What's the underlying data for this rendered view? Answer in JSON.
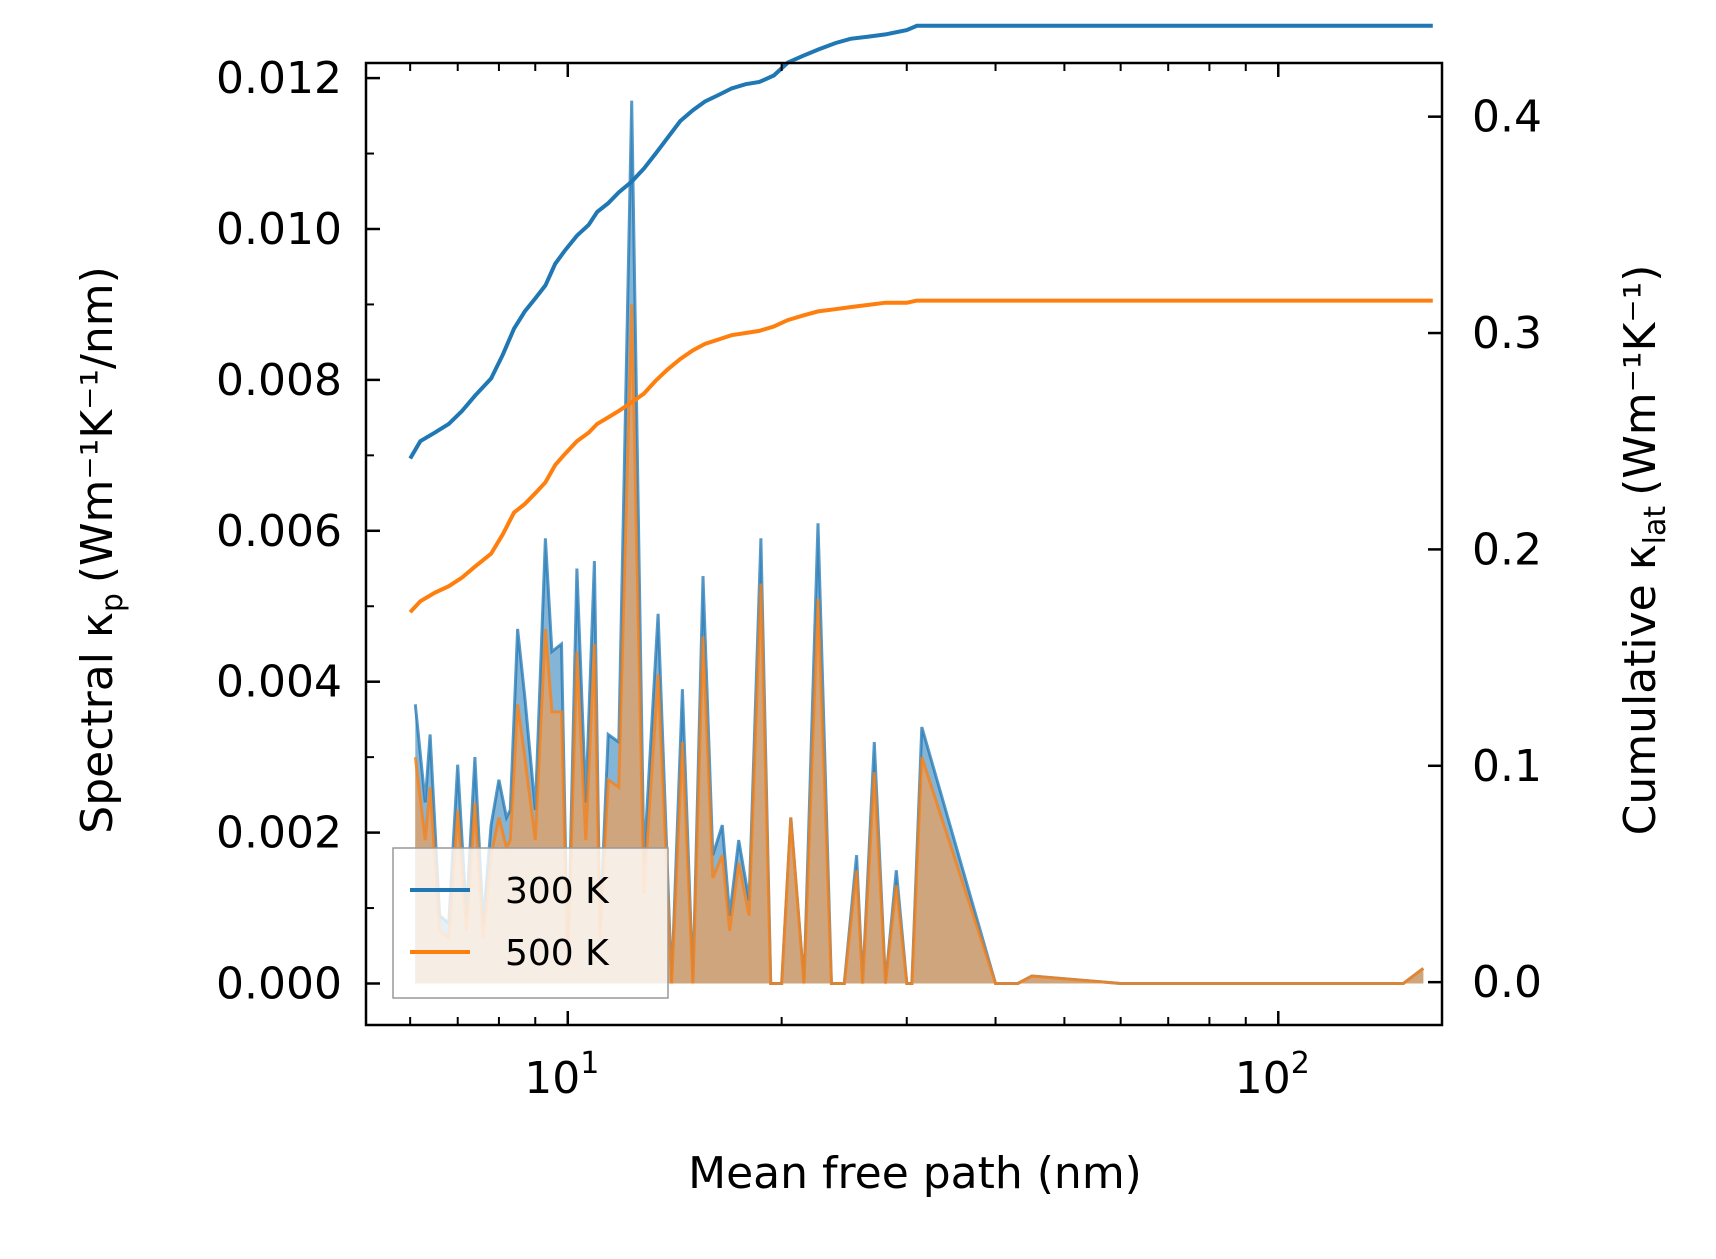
{
  "chart_data": {
    "type": "line",
    "xlabel": "Mean free path (nm)",
    "xscale": "log",
    "xlim": [
      5.2,
      170
    ],
    "ylabel_left": {
      "main": "Spectral κ",
      "sub": "p",
      "unit": "(Wm⁻¹K⁻¹/nm)"
    },
    "ylabel_right": {
      "main": "Cumulative κ",
      "sub": "lat",
      "unit": "(Wm⁻¹K⁻¹)"
    },
    "ylim_left": [
      -0.00055,
      0.0122
    ],
    "ylim_right": [
      -0.0198,
      0.4248
    ],
    "x_ticks": [
      {
        "value": 10,
        "label": "10",
        "exp": "1"
      },
      {
        "value": 100,
        "label": "10",
        "exp": "2"
      }
    ],
    "y_ticks_left": [
      "0.000",
      "0.002",
      "0.004",
      "0.006",
      "0.008",
      "0.010",
      "0.012"
    ],
    "y_ticks_left_values": [
      0,
      0.002,
      0.004,
      0.006,
      0.008,
      0.01,
      0.012
    ],
    "y_ticks_right": [
      "0.0",
      "0.1",
      "0.2",
      "0.3",
      "0.4"
    ],
    "y_ticks_right_values": [
      0,
      0.1,
      0.2,
      0.3,
      0.4
    ],
    "legend": {
      "placement": "lower-left",
      "entries": [
        "300 K",
        "500 K"
      ]
    },
    "colors": {
      "s300": "#1f77b4",
      "s500": "#ff7f0e",
      "fill300": "#1f77b4",
      "fill500": "#e8a060"
    },
    "spectral_x": [
      6.1,
      6.3,
      6.4,
      6.6,
      6.8,
      7.0,
      7.2,
      7.4,
      7.6,
      7.8,
      8.0,
      8.2,
      8.3,
      8.5,
      8.7,
      9.0,
      9.3,
      9.5,
      9.8,
      10.0,
      10.3,
      10.6,
      10.9,
      11.1,
      11.4,
      11.8,
      12.3,
      12.8,
      13.4,
      14.0,
      14.5,
      15.0,
      15.5,
      16.0,
      16.5,
      16.9,
      17.4,
      18.0,
      18.7,
      19.3,
      20.0,
      20.6,
      21.5,
      22.5,
      23.5,
      24.5,
      25.5,
      26.0,
      27.0,
      28.0,
      29.0,
      30.0,
      30.5,
      31.5,
      40.0,
      43.0,
      45.0,
      60.0,
      100.0,
      150.0,
      160.0
    ],
    "spectral_300": [
      0.0037,
      0.0024,
      0.0033,
      0.0009,
      0.0008,
      0.0029,
      0.0009,
      0.003,
      0.0008,
      0.0021,
      0.0027,
      0.0022,
      0.0023,
      0.0047,
      0.0038,
      0.0023,
      0.0059,
      0.0044,
      0.0045,
      0.0002,
      0.0055,
      0.0024,
      0.0056,
      0.0007,
      0.0033,
      0.0032,
      0.0117,
      0.0016,
      0.0049,
      0.0,
      0.0039,
      0.0,
      0.0054,
      0.0017,
      0.0021,
      0.0009,
      0.0019,
      0.0011,
      0.0059,
      0.0,
      0.0,
      0.0022,
      0.0,
      0.0061,
      0.0,
      0.0,
      0.0017,
      0.0,
      0.0032,
      0.0,
      0.0015,
      0.0,
      0.0,
      0.0034,
      0.0,
      0.0,
      0.0001,
      0.0,
      0.0,
      0.0,
      0.0002
    ],
    "spectral_500": [
      0.003,
      0.0019,
      0.0026,
      0.0007,
      0.0006,
      0.0023,
      0.0007,
      0.0024,
      0.0006,
      0.0017,
      0.0022,
      0.0018,
      0.0019,
      0.0037,
      0.003,
      0.0019,
      0.0047,
      0.0036,
      0.0036,
      0.0002,
      0.0044,
      0.0019,
      0.0045,
      0.0006,
      0.0027,
      0.0026,
      0.009,
      0.0012,
      0.0041,
      0.0,
      0.0032,
      0.0,
      0.0046,
      0.0014,
      0.0017,
      0.0007,
      0.0016,
      0.0009,
      0.0053,
      0.0,
      0.0,
      0.0022,
      0.0,
      0.0051,
      0.0,
      0.0,
      0.0015,
      0.0,
      0.0028,
      0.0,
      0.0013,
      0.0,
      0.0,
      0.003,
      0.0,
      0.0,
      0.0001,
      0.0,
      0.0,
      0.0,
      0.0002
    ],
    "cumulative_x": [
      6.0,
      6.2,
      6.5,
      6.8,
      7.1,
      7.4,
      7.8,
      8.1,
      8.4,
      8.7,
      9.0,
      9.3,
      9.6,
      9.9,
      10.3,
      10.7,
      11.0,
      11.4,
      11.8,
      12.3,
      12.8,
      13.3,
      13.8,
      14.4,
      15.0,
      15.6,
      16.3,
      17.0,
      17.8,
      18.6,
      19.5,
      20.4,
      21.4,
      22.5,
      23.8,
      25.0,
      26.5,
      28.0,
      30.0,
      31.0,
      35.0,
      50.0,
      80.0,
      120.0,
      165.0
    ],
    "cumulative_300": [
      0.242,
      0.25,
      0.254,
      0.258,
      0.264,
      0.271,
      0.279,
      0.29,
      0.302,
      0.31,
      0.316,
      0.322,
      0.332,
      0.338,
      0.345,
      0.35,
      0.356,
      0.36,
      0.365,
      0.37,
      0.376,
      0.383,
      0.39,
      0.398,
      0.403,
      0.407,
      0.41,
      0.413,
      0.415,
      0.416,
      0.419,
      0.425,
      0.428,
      0.431,
      0.434,
      0.436,
      0.437,
      0.438,
      0.44,
      0.442,
      0.442,
      0.442,
      0.442,
      0.442,
      0.442
    ],
    "cumulative_500": [
      0.171,
      0.176,
      0.18,
      0.183,
      0.187,
      0.192,
      0.198,
      0.207,
      0.217,
      0.221,
      0.226,
      0.231,
      0.239,
      0.244,
      0.25,
      0.254,
      0.258,
      0.261,
      0.264,
      0.268,
      0.272,
      0.278,
      0.283,
      0.288,
      0.292,
      0.295,
      0.297,
      0.299,
      0.3,
      0.301,
      0.303,
      0.306,
      0.308,
      0.31,
      0.311,
      0.312,
      0.313,
      0.314,
      0.314,
      0.315,
      0.315,
      0.315,
      0.315,
      0.315,
      0.315
    ]
  }
}
